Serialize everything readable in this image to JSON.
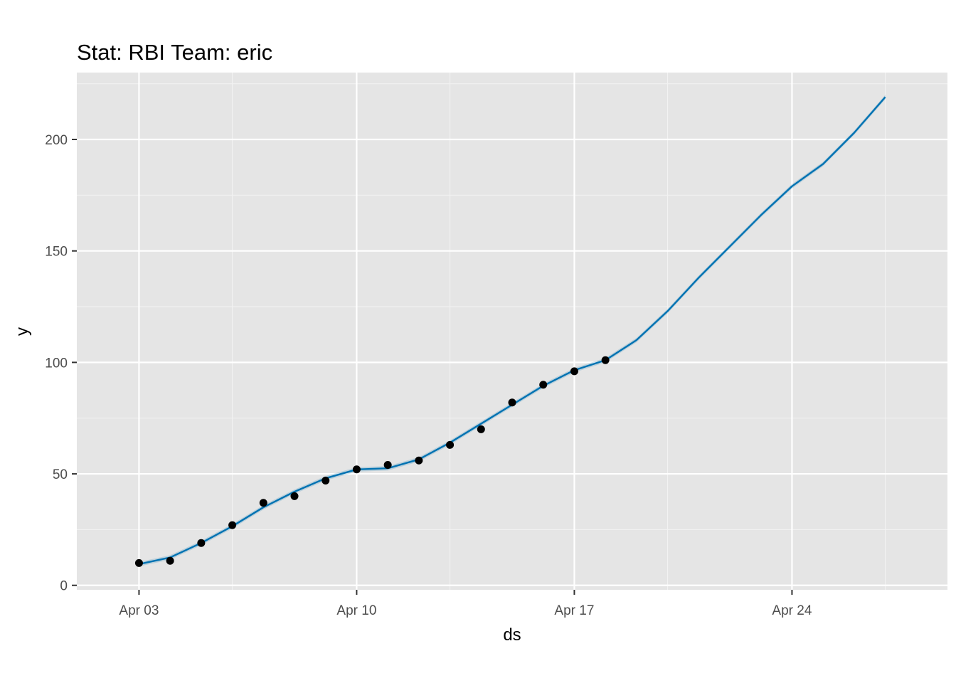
{
  "chart_data": {
    "type": "line",
    "title": "Stat: RBI Team: eric",
    "xlabel": "ds",
    "ylabel": "y",
    "x_axis": {
      "type": "date",
      "range": [
        "2023-04-01",
        "2023-04-29"
      ],
      "ticks": [
        {
          "date": "2023-04-03",
          "label": "Apr 03"
        },
        {
          "date": "2023-04-10",
          "label": "Apr 10"
        },
        {
          "date": "2023-04-17",
          "label": "Apr 17"
        },
        {
          "date": "2023-04-24",
          "label": "Apr 24"
        }
      ],
      "minor_ticks": [
        "2023-04-06",
        "2023-04-13",
        "2023-04-20",
        "2023-04-27"
      ]
    },
    "y_axis": {
      "range": [
        -2,
        230
      ],
      "ticks": [
        0,
        50,
        100,
        150,
        200
      ],
      "minor_ticks": [
        25,
        75,
        125,
        175,
        225
      ]
    },
    "grid": true,
    "series": [
      {
        "kind": "points",
        "color": "#000000",
        "points": [
          {
            "x": "2023-04-03",
            "y": 10
          },
          {
            "x": "2023-04-04",
            "y": 11
          },
          {
            "x": "2023-04-05",
            "y": 19
          },
          {
            "x": "2023-04-06",
            "y": 27
          },
          {
            "x": "2023-04-07",
            "y": 37
          },
          {
            "x": "2023-04-08",
            "y": 40
          },
          {
            "x": "2023-04-09",
            "y": 47
          },
          {
            "x": "2023-04-10",
            "y": 52
          },
          {
            "x": "2023-04-11",
            "y": 54
          },
          {
            "x": "2023-04-12",
            "y": 56
          },
          {
            "x": "2023-04-13",
            "y": 63
          },
          {
            "x": "2023-04-14",
            "y": 70
          },
          {
            "x": "2023-04-15",
            "y": 82
          },
          {
            "x": "2023-04-16",
            "y": 90
          },
          {
            "x": "2023-04-17",
            "y": 96
          },
          {
            "x": "2023-04-18",
            "y": 101
          }
        ]
      },
      {
        "kind": "line",
        "color": "#0072B2",
        "band_color": "#0072B2",
        "points": [
          {
            "x": "2023-04-03",
            "y": 9.5,
            "lo": 8.5,
            "hi": 10.5
          },
          {
            "x": "2023-04-04",
            "y": 12.5,
            "lo": 11.5,
            "hi": 13.5
          },
          {
            "x": "2023-04-05",
            "y": 19,
            "lo": 18,
            "hi": 20
          },
          {
            "x": "2023-04-06",
            "y": 26.5,
            "lo": 25.5,
            "hi": 27.5
          },
          {
            "x": "2023-04-07",
            "y": 35,
            "lo": 34,
            "hi": 36
          },
          {
            "x": "2023-04-08",
            "y": 42,
            "lo": 41,
            "hi": 43
          },
          {
            "x": "2023-04-09",
            "y": 48,
            "lo": 47,
            "hi": 49
          },
          {
            "x": "2023-04-10",
            "y": 52,
            "lo": 51,
            "hi": 53
          },
          {
            "x": "2023-04-11",
            "y": 52.5,
            "lo": 51.5,
            "hi": 53.5
          },
          {
            "x": "2023-04-12",
            "y": 56.5,
            "lo": 55.5,
            "hi": 57.5
          },
          {
            "x": "2023-04-13",
            "y": 64,
            "lo": 63,
            "hi": 65
          },
          {
            "x": "2023-04-14",
            "y": 72.5,
            "lo": 71.5,
            "hi": 73.5
          },
          {
            "x": "2023-04-15",
            "y": 81,
            "lo": 80,
            "hi": 82
          },
          {
            "x": "2023-04-16",
            "y": 89.5,
            "lo": 88.5,
            "hi": 90.5
          },
          {
            "x": "2023-04-17",
            "y": 96.5,
            "lo": 95.5,
            "hi": 97.5
          },
          {
            "x": "2023-04-18",
            "y": 101,
            "lo": 100,
            "hi": 102
          },
          {
            "x": "2023-04-19",
            "y": 110,
            "lo": 109,
            "hi": 111
          },
          {
            "x": "2023-04-20",
            "y": 123,
            "lo": 122,
            "hi": 124
          },
          {
            "x": "2023-04-21",
            "y": 138,
            "lo": 137,
            "hi": 139
          },
          {
            "x": "2023-04-22",
            "y": 152,
            "lo": 151,
            "hi": 153
          },
          {
            "x": "2023-04-23",
            "y": 166,
            "lo": 165,
            "hi": 167
          },
          {
            "x": "2023-04-24",
            "y": 179,
            "lo": 178,
            "hi": 180
          },
          {
            "x": "2023-04-25",
            "y": 189,
            "lo": 188,
            "hi": 190
          },
          {
            "x": "2023-04-26",
            "y": 203,
            "lo": 202,
            "hi": 204
          },
          {
            "x": "2023-04-27",
            "y": 219,
            "lo": 218,
            "hi": 220
          }
        ]
      }
    ]
  }
}
